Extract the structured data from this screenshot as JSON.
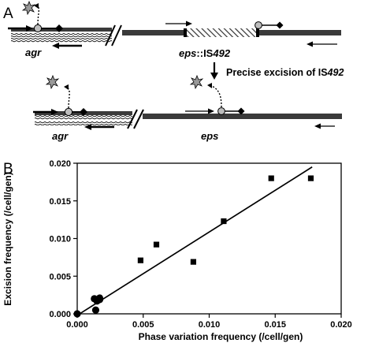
{
  "panel_a": {
    "letter": "A",
    "top_left_gene": "agr",
    "top_right_gene_italic": "eps",
    "top_right_gene_suffix": "::IS",
    "top_right_gene_number": "492",
    "excision_text": "Precise excision of IS",
    "excision_number": "492",
    "bottom_left_gene": "agr",
    "bottom_right_gene": "eps"
  },
  "panel_b": {
    "letter": "B"
  },
  "chart_data": {
    "type": "scatter",
    "xlabel": "Phase variation frequency (/cell/gen)",
    "ylabel": "Excision frequency (/cell/gen)",
    "xlim": [
      0,
      0.02
    ],
    "ylim": [
      0,
      0.02
    ],
    "x_ticks": [
      "0.000",
      "0.005",
      "0.010",
      "0.015",
      "0.020"
    ],
    "y_ticks": [
      "0.000",
      "0.005",
      "0.010",
      "0.015",
      "0.020"
    ],
    "grid": false,
    "series": [
      {
        "marker": "square",
        "points": [
          {
            "x": 0.0048,
            "y": 0.0071
          },
          {
            "x": 0.006,
            "y": 0.0092
          },
          {
            "x": 0.0088,
            "y": 0.0069
          },
          {
            "x": 0.0111,
            "y": 0.0123
          },
          {
            "x": 0.0147,
            "y": 0.018
          },
          {
            "x": 0.0177,
            "y": 0.018
          }
        ]
      },
      {
        "marker": "circle",
        "points": [
          {
            "x": 0.0,
            "y": 0.0
          },
          {
            "x": 0.0013,
            "y": 0.002
          },
          {
            "x": 0.0015,
            "y": 0.0017
          },
          {
            "x": 0.0017,
            "y": 0.0019
          },
          {
            "x": 0.0017,
            "y": 0.0021
          },
          {
            "x": 0.0014,
            "y": 0.0005
          }
        ]
      }
    ],
    "fit_line": {
      "x": [
        0.0,
        0.0178
      ],
      "y": [
        -0.0002,
        0.0195
      ]
    }
  }
}
